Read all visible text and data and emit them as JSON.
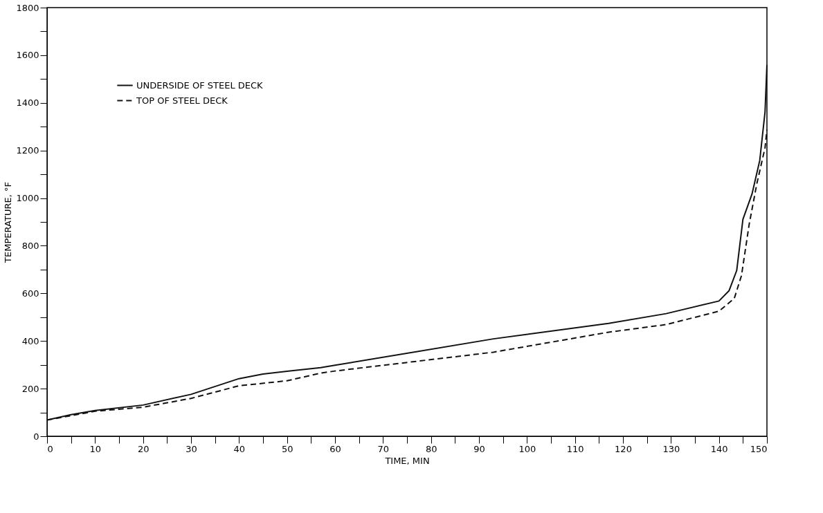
{
  "chart_data": {
    "type": "line",
    "xlabel": "TIME, MIN",
    "ylabel": "TEMPERATURE, °F",
    "xlim": [
      0,
      150
    ],
    "ylim": [
      0,
      1800
    ],
    "xticks": [
      0,
      {
        "value": 5,
        "label": null
      },
      10,
      {
        "value": 15,
        "label": null
      },
      20,
      {
        "value": 25,
        "label": null
      },
      30,
      {
        "value": 35,
        "label": null
      },
      40,
      {
        "value": 45,
        "label": null
      },
      50,
      {
        "value": 55,
        "label": null
      },
      60,
      {
        "value": 65,
        "label": null
      },
      70,
      {
        "value": 75,
        "label": null
      },
      80,
      {
        "value": 85,
        "label": null
      },
      90,
      {
        "value": 95,
        "label": null
      },
      100,
      {
        "value": 105,
        "label": null
      },
      110,
      {
        "value": 115,
        "label": null
      },
      120,
      {
        "value": 125,
        "label": null
      },
      130,
      {
        "value": 135,
        "label": null
      },
      140,
      {
        "value": 145,
        "label": null
      },
      150
    ],
    "yticks": [
      0,
      {
        "value": 100,
        "label": null
      },
      200,
      {
        "value": 300,
        "label": null
      },
      400,
      {
        "value": 500,
        "label": null
      },
      600,
      {
        "value": 700,
        "label": null
      },
      800,
      {
        "value": 900,
        "label": null
      },
      1000,
      {
        "value": 1100,
        "label": null
      },
      1200,
      {
        "value": 1300,
        "label": null
      },
      1400,
      {
        "value": 1500,
        "label": null
      },
      1600,
      {
        "value": 1700,
        "label": null
      },
      1800
    ],
    "grid": false,
    "legend": "top left",
    "marker": "none",
    "series": [
      {
        "name": "UNDERSIDE OF STEEL DECK",
        "color": "#111111",
        "line_style": "solid",
        "x": [
          0,
          5,
          10,
          20,
          30,
          40,
          45,
          50,
          57,
          60,
          93,
          117,
          129,
          140,
          142.1,
          143.7,
          145,
          146.9,
          148.5,
          149.6,
          150
        ],
        "values": [
          68,
          91,
          108,
          131,
          176,
          242,
          261,
          273,
          288,
          298,
          409,
          474,
          515,
          568,
          611,
          696,
          911,
          1018,
          1158,
          1361,
          1560
        ]
      },
      {
        "name": "TOP OF STEEL DECK",
        "color": "#111111",
        "line_style": "dashed",
        "x": [
          0,
          10,
          20,
          30,
          40,
          50,
          57,
          60,
          93,
          117,
          129,
          140,
          143.2,
          144.7,
          146.3,
          147.9,
          149.6,
          150
        ],
        "values": [
          68,
          105,
          122,
          159,
          212,
          233,
          265,
          274,
          353,
          437,
          469,
          525,
          579,
          675,
          890,
          1061,
          1211,
          1287
        ]
      }
    ]
  }
}
